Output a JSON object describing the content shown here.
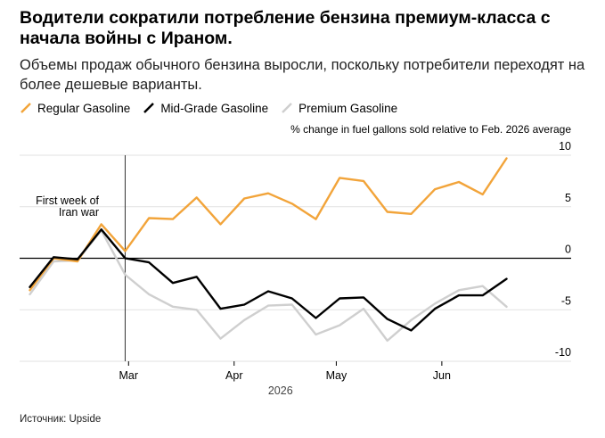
{
  "title": "Водители сократили потребление бензина премиум-класса с начала войны с Ираном.",
  "subtitle": "Объемы продаж обычного бензина выросли, поскольку потребители переходят на более дешевые варианты.",
  "source": "Источник: Upside",
  "chart_data": {
    "type": "line",
    "title": "Водители сократили потребление бензина премиум-класса с начала войны с Ираном.",
    "ylabel": "% change in fuel gallons sold relative to Feb. 2026 average",
    "year_label": "2026",
    "ylim": [
      -10,
      10
    ],
    "yticks": [
      10,
      5,
      0,
      -5,
      -10
    ],
    "ytick_labels": [
      "10",
      "5",
      "0",
      "-5",
      "-10"
    ],
    "xticks": [
      {
        "label": "Mar",
        "x": "2026-03-01"
      },
      {
        "label": "Apr",
        "x": "2026-04-01"
      },
      {
        "label": "May",
        "x": "2026-05-01"
      },
      {
        "label": "Jun",
        "x": "2026-06-01"
      }
    ],
    "annotation": {
      "text": [
        "First week of",
        "Iran war"
      ],
      "x": "2026-02-28"
    },
    "grid": true,
    "legend_position": "top-left",
    "x": [
      "2026-01-31",
      "2026-02-07",
      "2026-02-14",
      "2026-02-21",
      "2026-02-28",
      "2026-03-07",
      "2026-03-14",
      "2026-03-21",
      "2026-03-28",
      "2026-04-04",
      "2026-04-11",
      "2026-04-18",
      "2026-04-25",
      "2026-05-02",
      "2026-05-09",
      "2026-05-16",
      "2026-05-23",
      "2026-05-30",
      "2026-06-06",
      "2026-06-13",
      "2026-06-20",
      "2026-06-27"
    ],
    "series": [
      {
        "name": "Premium Gasoline",
        "color": "#cfcfcf",
        "values": [
          -3.5,
          -0.3,
          -0.2,
          2.7,
          -1.6,
          -3.5,
          -4.7,
          -5.0,
          -7.8,
          -6.0,
          -4.6,
          -4.5,
          -7.4,
          -6.5,
          -4.9,
          -8.0,
          -6.0,
          -4.4,
          -3.1,
          -2.7,
          -4.7,
          null
        ]
      },
      {
        "name": "Regular Gasoline",
        "color": "#f2a43a",
        "values": [
          -3.1,
          0.0,
          -0.3,
          3.3,
          0.7,
          3.9,
          3.8,
          5.9,
          3.3,
          5.8,
          6.3,
          5.3,
          3.8,
          7.8,
          7.5,
          4.5,
          4.3,
          6.7,
          7.4,
          6.2,
          9.7,
          null
        ]
      },
      {
        "name": "Mid-Grade Gasoline",
        "color": "#000000",
        "values": [
          -2.8,
          0.1,
          -0.1,
          2.8,
          0.0,
          -0.4,
          -2.4,
          -1.8,
          -4.9,
          -4.5,
          -3.2,
          -3.9,
          -5.8,
          -3.9,
          -3.8,
          -5.9,
          -7.0,
          -4.9,
          -3.6,
          -3.6,
          -2.0,
          null
        ]
      }
    ]
  }
}
